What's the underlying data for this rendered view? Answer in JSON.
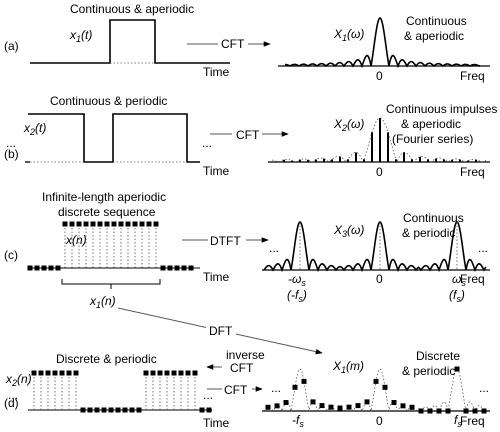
{
  "panels": {
    "a": {
      "tag": "(a)",
      "title": "Continuous & aperiodic",
      "signal_label_main": "x",
      "signal_label_sub": "1",
      "signal_label_arg": "(t)",
      "time_label": "Time",
      "transform": "CFT",
      "spectrum_label_main": "X",
      "spectrum_label_sub": "1",
      "spectrum_label_arg": "(ω)",
      "spectrum_desc_line1": "Continuous",
      "spectrum_desc_line2": "& aperiodic",
      "zero": "0",
      "freq_label": "Freq"
    },
    "b": {
      "tag": "(b)",
      "title": "Continuous & periodic",
      "signal_label_main": "x",
      "signal_label_sub": "2",
      "signal_label_arg": "(t)",
      "ellipsis": "...",
      "time_label": "Time",
      "transform": "CFT",
      "spectrum_label_main": "X",
      "spectrum_label_sub": "2",
      "spectrum_label_arg": "(ω)",
      "spectrum_desc_line1": "Continuous impulses",
      "spectrum_desc_line2": "& aperiodic",
      "spectrum_desc_line3": "(Fourier series)",
      "zero": "0",
      "freq_label": "Freq"
    },
    "c": {
      "tag": "(c)",
      "title_line1": "Infinite-length aperiodic",
      "title_line2": "discrete sequence",
      "signal_label": "x(n)",
      "time_label": "Time",
      "window_label_main": "x",
      "window_label_sub": "1",
      "window_label_arg": "(n)",
      "transform": "DTFT",
      "spectrum_label_main": "X",
      "spectrum_label_sub": "3",
      "spectrum_label_arg": "(ω)",
      "spectrum_desc_line1": "Continuous",
      "spectrum_desc_line2": "& periodic",
      "ellipsis": "...",
      "neg_ws_main": "-ω",
      "neg_ws_sub": "s",
      "neg_fs_open": "(-f",
      "neg_fs_sub": "s",
      "neg_fs_close": ")",
      "pos_ws_main": "ω",
      "pos_ws_sub": "s",
      "pos_fs_open": "(f",
      "pos_fs_sub": "s",
      "pos_fs_close": ")",
      "zero": "0",
      "freq_label": "Freq"
    },
    "dft": {
      "label": "DFT"
    },
    "d": {
      "tag": "(d)",
      "title": "Discrete & periodic",
      "signal_label_main": "x",
      "signal_label_sub": "2",
      "signal_label_arg": "(n)",
      "ellipsis": "...",
      "time_label": "Time",
      "inverse_line1": "inverse",
      "inverse_line2": "CFT",
      "transform": "CFT",
      "spectrum_label_main": "X",
      "spectrum_label_sub": "1",
      "spectrum_label_arg": "(m)",
      "spectrum_desc_line1": "Discrete",
      "spectrum_desc_line2": "& periodic",
      "neg_fs_main": "-f",
      "neg_fs_sub": "s",
      "pos_fs_main": "f",
      "pos_fs_sub": "s",
      "zero": "0",
      "freq_label": "Freq"
    }
  }
}
